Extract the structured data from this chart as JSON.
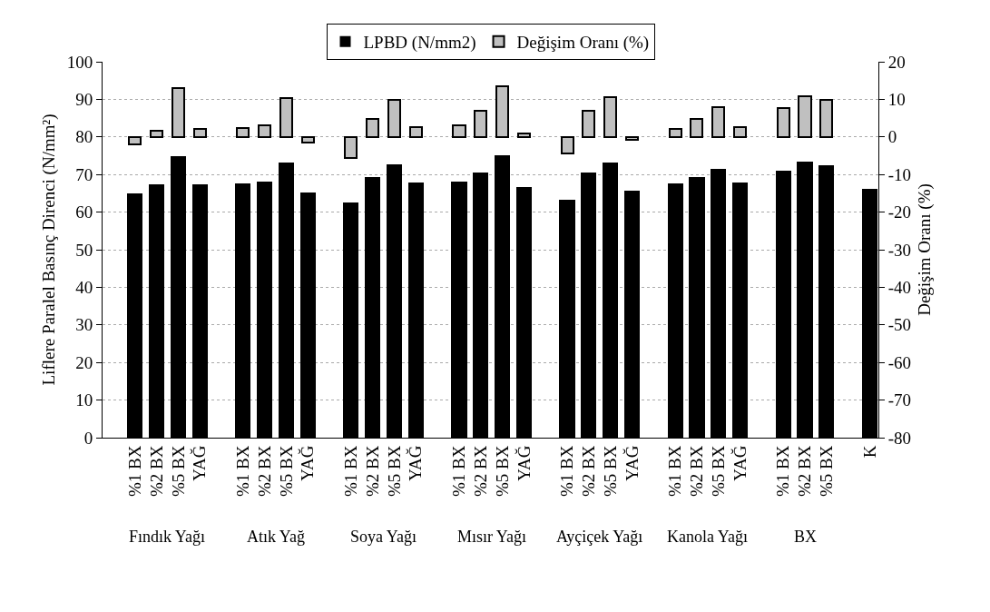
{
  "chart_data": {
    "type": "bar",
    "ylabel": "Liflere Paralel Basınç Direnci (N/mm²)",
    "y2label": "Değişim Oranı (%)",
    "categories": [
      "%1 BX",
      "%2 BX",
      "%5 BX",
      "YAĞ",
      "%1 BX",
      "%2 BX",
      "%5 BX",
      "YAĞ",
      "%1 BX",
      "%2 BX",
      "%5 BX",
      "YAĞ",
      "%1 BX",
      "%2 BX",
      "%5 BX",
      "YAĞ",
      "%1 BX",
      "%2 BX",
      "%5 BX",
      "YAĞ",
      "%1 BX",
      "%2 BX",
      "%5 BX",
      "YAĞ",
      "%1 BX",
      "%2 BX",
      "%5 BX",
      "K"
    ],
    "annotations": [
      "Fındık Yağı",
      "Atık Yağ",
      "Soya Yağı",
      "Mısır Yağı",
      "Ayçiçek Yağı",
      "Kanola Yağı",
      "BX"
    ],
    "series": [
      {
        "name": "LPBD (N/mm2)",
        "color": "#000000",
        "values": [
          64.9,
          67.3,
          74.8,
          67.5,
          67.7,
          68.2,
          73.1,
          65.2,
          62.5,
          69.3,
          72.7,
          67.8,
          68.2,
          70.6,
          75.1,
          66.6,
          63.2,
          70.6,
          73.3,
          65.7,
          67.6,
          69.3,
          71.5,
          67.9,
          71.1,
          73.4,
          72.5,
          66.3
        ]
      },
      {
        "name": "Değişim Oranı (%)",
        "color": "#c0c0c0",
        "axis": "y2",
        "values": [
          -2.0,
          1.7,
          13.1,
          2.1,
          2.3,
          3.0,
          10.3,
          -1.5,
          -5.7,
          4.7,
          9.8,
          2.6,
          3.0,
          6.9,
          13.5,
          0.8,
          -4.5,
          6.9,
          10.7,
          -0.8,
          2.1,
          4.8,
          8.0,
          2.7,
          7.6,
          10.9,
          9.8,
          null
        ]
      }
    ],
    "ylim": [
      0,
      100
    ],
    "yticks": [
      0,
      10,
      20,
      30,
      40,
      50,
      60,
      70,
      80,
      90,
      100
    ],
    "y2lim": [
      -80,
      20
    ],
    "y2ticks": [
      -80,
      -70,
      -60,
      -50,
      -40,
      -30,
      -20,
      -10,
      0,
      10,
      20
    ],
    "grid": "y",
    "legend": "top"
  }
}
